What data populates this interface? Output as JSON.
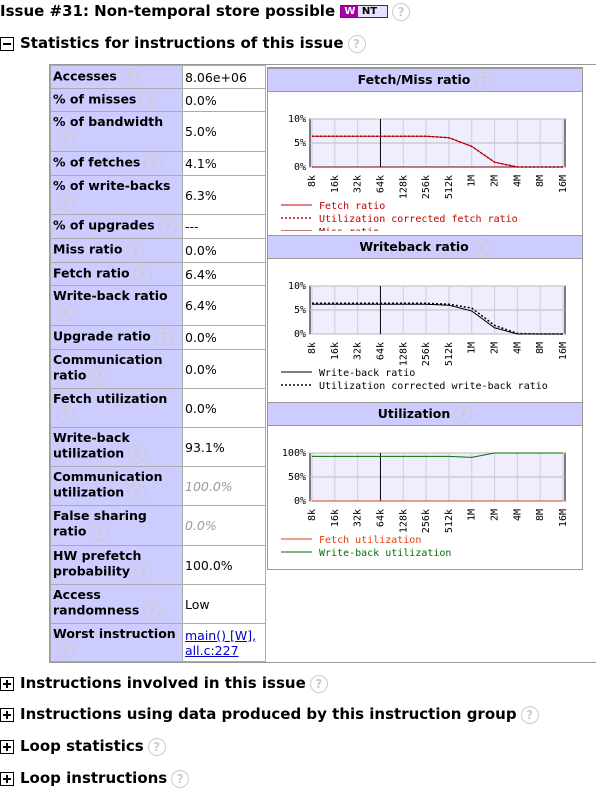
{
  "header": {
    "title": "Issue #31: Non-temporal store possible",
    "badge_icon": "W",
    "badge": "NT",
    "help": "?"
  },
  "section": {
    "title": "Statistics for instructions of this issue"
  },
  "table": {
    "rows": [
      [
        "Accesses",
        "8.06e+06"
      ],
      [
        "% of misses",
        "0.0%"
      ],
      [
        "% of bandwidth",
        "5.0%"
      ],
      [
        "% of fetches",
        "4.1%"
      ],
      [
        "% of write-backs",
        "6.3%"
      ],
      [
        "% of upgrades",
        "---"
      ],
      [
        "Miss ratio",
        "0.0%"
      ],
      [
        "Fetch ratio",
        "6.4%"
      ],
      [
        "Write-back ratio",
        "6.4%"
      ],
      [
        "Upgrade ratio",
        "0.0%"
      ],
      [
        "Communication ratio",
        "0.0%"
      ],
      [
        "Fetch utilization",
        "0.0%"
      ],
      [
        "Write-back utilization",
        "93.1%"
      ],
      [
        "Communication utilization",
        "100.0%"
      ],
      [
        "False sharing ratio",
        "0.0%"
      ],
      [
        "HW prefetch probability",
        "100.0%"
      ],
      [
        "Access randomness",
        "Low"
      ],
      [
        "Worst instruction",
        "main() [W], all.c:227"
      ]
    ],
    "dimmed_rows": [
      13,
      14
    ]
  },
  "charts": [
    {
      "type": "line",
      "title": "Fetch/Miss ratio",
      "ylim": [
        0,
        10
      ],
      "yticks": [
        {
          "value": 0,
          "label": "0%"
        },
        {
          "value": 5,
          "label": "5%"
        },
        {
          "value": 10,
          "label": "10%"
        }
      ],
      "categories": [
        "8k",
        "16k",
        "32k",
        "64k",
        "128k",
        "256k",
        "512k",
        "1M",
        "2M",
        "4M",
        "8M",
        "16M"
      ],
      "series": [
        {
          "name": "Fetch ratio",
          "color": "#c00000",
          "dashed": false,
          "values": [
            6.4,
            6.4,
            6.4,
            6.4,
            6.4,
            6.4,
            6.1,
            4.3,
            1.0,
            0,
            0,
            0
          ]
        },
        {
          "name": "Utilization corrected fetch ratio",
          "color": "#c00000",
          "dashed": true,
          "values": [
            6.4,
            6.4,
            6.4,
            6.4,
            6.4,
            6.4,
            6.1,
            4.3,
            1.0,
            0,
            0,
            0
          ]
        },
        {
          "name": "Miss ratio",
          "color": "#800000",
          "dashed": false,
          "values": [
            0,
            0,
            0,
            0,
            0,
            0,
            0,
            0,
            0,
            0,
            0,
            0
          ]
        }
      ]
    },
    {
      "type": "line",
      "title": "Writeback ratio",
      "ylim": [
        0,
        10
      ],
      "yticks": [
        {
          "value": 0,
          "label": "0%"
        },
        {
          "value": 5,
          "label": "5%"
        },
        {
          "value": 10,
          "label": "10%"
        }
      ],
      "categories": [
        "8k",
        "16k",
        "32k",
        "64k",
        "128k",
        "256k",
        "512k",
        "1M",
        "2M",
        "4M",
        "8M",
        "16M"
      ],
      "series": [
        {
          "name": "Write-back ratio",
          "color": "#000000",
          "dashed": false,
          "values": [
            6.2,
            6.2,
            6.2,
            6.2,
            6.2,
            6.2,
            6.0,
            4.8,
            1.3,
            0,
            0,
            0
          ]
        },
        {
          "name": "Utilization corrected write-back ratio",
          "color": "#000000",
          "dashed": true,
          "values": [
            6.4,
            6.4,
            6.4,
            6.4,
            6.4,
            6.4,
            6.2,
            5.4,
            1.8,
            0.1,
            0,
            0
          ]
        }
      ]
    },
    {
      "type": "line",
      "title": "Utilization",
      "ylim": [
        0,
        100
      ],
      "yticks": [
        {
          "value": 0,
          "label": "0%"
        },
        {
          "value": 50,
          "label": "50%"
        },
        {
          "value": 100,
          "label": "100%"
        }
      ],
      "categories": [
        "8k",
        "16k",
        "32k",
        "64k",
        "128k",
        "256k",
        "512k",
        "1M",
        "2M",
        "4M",
        "8M",
        "16M"
      ],
      "series": [
        {
          "name": "Fetch utilization",
          "color": "#e04010",
          "dashed": false,
          "values": [
            0,
            0,
            0,
            0,
            0,
            0,
            0,
            0,
            0,
            0,
            0,
            0
          ]
        },
        {
          "name": "Write-back utilization",
          "color": "#007000",
          "dashed": false,
          "values": [
            93,
            93,
            93,
            93,
            93,
            93,
            93,
            91,
            100,
            100,
            100,
            100
          ]
        }
      ]
    }
  ],
  "collapsed": [
    "Instructions involved in this issue",
    "Instructions using data produced by this instruction group",
    "Loop statistics",
    "Loop instructions"
  ]
}
